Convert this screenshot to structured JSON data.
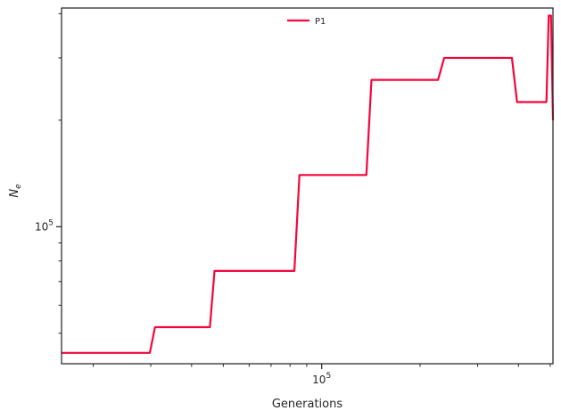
{
  "chart_data": {
    "type": "line",
    "xlabel": "Generations",
    "ylabel": "N",
    "ylabel_subscript": "e",
    "xscale": "log",
    "yscale": "log",
    "xlim": [
      16000,
      510000
    ],
    "ylim": [
      41000,
      415000
    ],
    "x_major_ticks": [
      {
        "value": 100000,
        "base": "10",
        "exponent": "5"
      }
    ],
    "y_major_ticks": [
      {
        "value": 100000,
        "base": "10",
        "exponent": "5"
      }
    ],
    "x_minor_ticks": [
      20000,
      30000,
      40000,
      50000,
      60000,
      70000,
      80000,
      90000,
      200000,
      300000,
      400000,
      500000
    ],
    "y_minor_ticks": [
      50000,
      60000,
      70000,
      80000,
      90000,
      200000,
      300000,
      400000
    ],
    "grid": false,
    "legend_position": "upper-center",
    "series": [
      {
        "name": "P1",
        "color": "#f5053c",
        "points": [
          [
            16000,
            44000
          ],
          [
            29800,
            44000
          ],
          [
            30900,
            52000
          ],
          [
            45500,
            52000
          ],
          [
            47000,
            75000
          ],
          [
            82500,
            75000
          ],
          [
            85500,
            140000
          ],
          [
            137000,
            140000
          ],
          [
            142000,
            260000
          ],
          [
            227000,
            260000
          ],
          [
            237000,
            300000
          ],
          [
            382000,
            300000
          ],
          [
            396000,
            225000
          ],
          [
            487000,
            225000
          ],
          [
            495000,
            395000
          ],
          [
            503000,
            395000
          ],
          [
            510000,
            200000
          ]
        ]
      }
    ]
  }
}
